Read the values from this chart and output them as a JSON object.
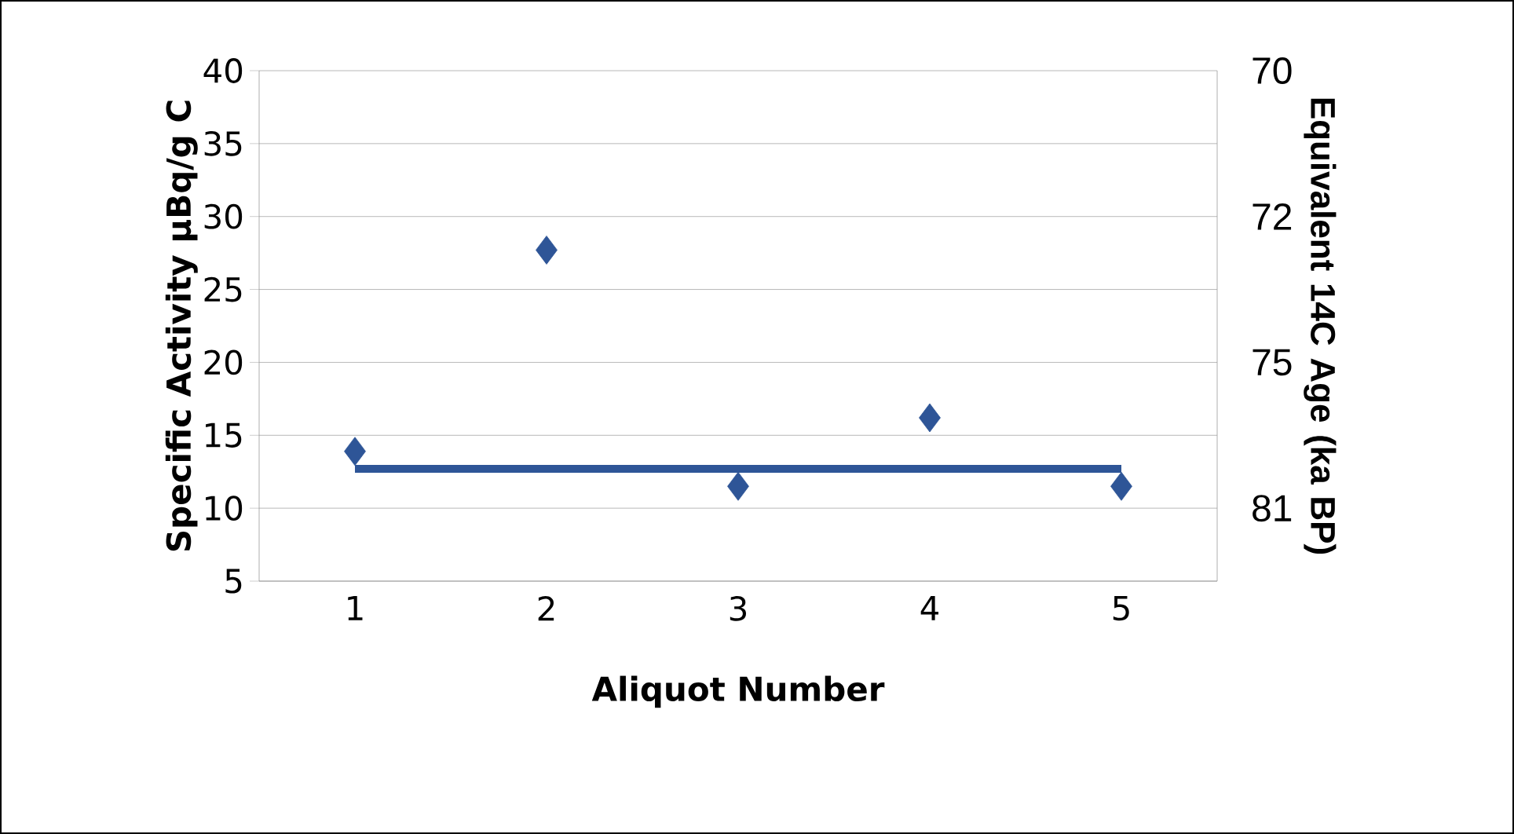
{
  "chart_data": {
    "type": "scatter",
    "xlabel": "Aliquot Number",
    "ylabel": "Specific Activity µBq/g C",
    "y2label": "Equivalent 14C Age (ka BP)",
    "categories": [
      "1",
      "2",
      "3",
      "4",
      "5"
    ],
    "series": [
      {
        "color": "#2e5597",
        "marker": "diamond",
        "values": [
          13.9,
          27.7,
          11.5,
          16.2,
          11.5
        ]
      },
      {
        "type": "line",
        "color": "#2e5597",
        "marker": "none",
        "line_style": "solid",
        "values": [
          12.7,
          12.7,
          12.7,
          12.7,
          12.7
        ]
      }
    ],
    "ylim": [
      5,
      40
    ],
    "yticks": [
      5,
      10,
      15,
      20,
      25,
      30,
      35,
      40
    ],
    "y2_categories": [
      "70",
      "72",
      "75",
      "81"
    ],
    "grid": "y"
  }
}
